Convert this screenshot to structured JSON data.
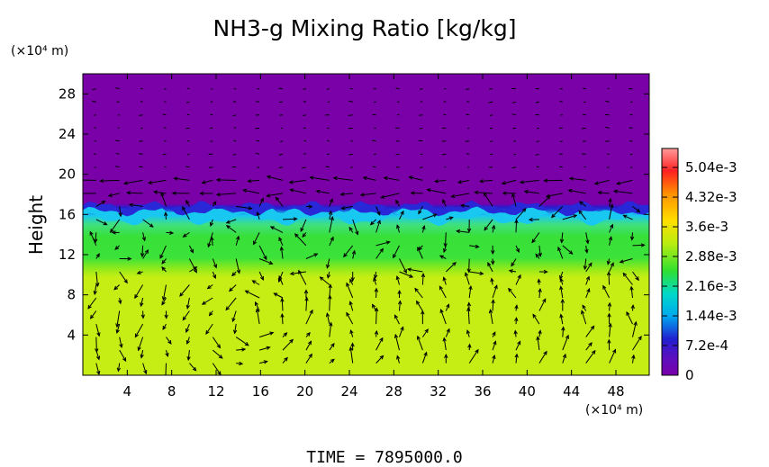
{
  "chart_data": {
    "type": "heatmap",
    "title": "NH3-g Mixing Ratio [kg/kg]",
    "ylabel": "Height",
    "x_unit": "(×10⁴ m)",
    "y_unit": "(×10⁴ m)",
    "time_label": "TIME  =  7895000.0",
    "xlim": [
      0,
      51
    ],
    "ylim": [
      0,
      30
    ],
    "x_ticks": [
      4,
      8,
      12,
      16,
      20,
      24,
      28,
      32,
      36,
      40,
      44,
      48
    ],
    "y_ticks": [
      4,
      8,
      12,
      16,
      20,
      24,
      28
    ],
    "colorbar": {
      "range": [
        0,
        0.0055
      ],
      "tick_values": [
        0,
        0.00072,
        0.00144,
        0.00216,
        0.00288,
        0.0036,
        0.00432,
        0.00504
      ],
      "tick_labels": [
        "0",
        "7.2e-4",
        "1.44e-3",
        "2.16e-3",
        "2.88e-3",
        "3.6e-3",
        "4.32e-3",
        "5.04e-3"
      ],
      "colors": [
        "#7a00a8",
        "#2020d0",
        "#00b0f0",
        "#00e0c0",
        "#30e030",
        "#c0ee10",
        "#ffe000",
        "#ff8c00",
        "#ff2020",
        "#ff9090"
      ]
    },
    "layers": [
      {
        "name": "upper",
        "y_range": [
          16.5,
          30
        ],
        "value": 0.0,
        "color": "#7a00a8"
      },
      {
        "name": "transition",
        "y_range": [
          15.8,
          16.8
        ],
        "value": 0.0012,
        "color": "#2a2ad8"
      },
      {
        "name": "cyan",
        "y_range": [
          14.8,
          16.2
        ],
        "value": 0.0019,
        "color": "#18c8f0"
      },
      {
        "name": "green",
        "y_range": [
          10,
          15
        ],
        "value": 0.0031,
        "color": "#36e036"
      },
      {
        "name": "lower",
        "y_range": [
          0,
          10
        ],
        "value": 0.0036,
        "color": "#c6ee14"
      }
    ],
    "vectors": "wind field arrows"
  }
}
